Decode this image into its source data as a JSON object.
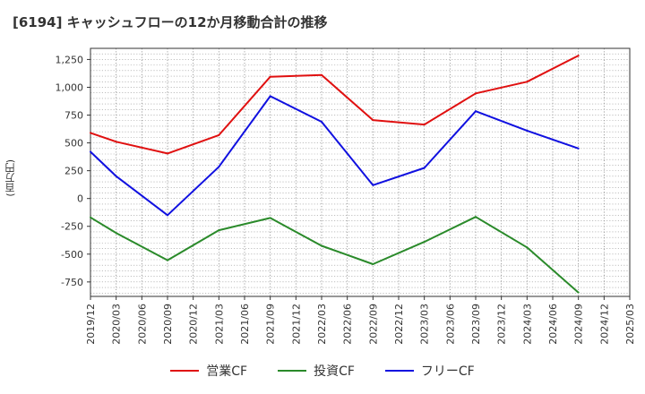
{
  "chart_data": {
    "type": "line",
    "title": "[6194]  キャッシュフローの12か月移動合計の推移",
    "ylabel": "(百万円)",
    "xlabel": "",
    "ylim": [
      -880,
      1350
    ],
    "yticks": [
      1250,
      1000,
      750,
      500,
      250,
      0,
      -250,
      -500,
      -750
    ],
    "ytick_labels": [
      "1,250",
      "1,000",
      "750",
      "500",
      "250",
      "0",
      "-250",
      "-500",
      "-750"
    ],
    "categories": [
      "2019/12",
      "2020/03",
      "2020/06",
      "2020/09",
      "2020/12",
      "2021/03",
      "2021/06",
      "2021/09",
      "2021/12",
      "2022/03",
      "2022/06",
      "2022/09",
      "2022/12",
      "2023/03",
      "2023/06",
      "2023/09",
      "2023/12",
      "2024/03",
      "2024/06",
      "2024/09",
      "2024/12",
      "2025/03"
    ],
    "series": [
      {
        "name": "営業CF",
        "color": "#e01010",
        "values": [
          590,
          510,
          null,
          405,
          null,
          570,
          null,
          1095,
          null,
          1110,
          null,
          705,
          null,
          665,
          null,
          945,
          null,
          1050,
          null,
          1285,
          null,
          null
        ]
      },
      {
        "name": "投資CF",
        "color": "#2a8a2a",
        "values": [
          -170,
          -310,
          null,
          -555,
          null,
          -285,
          null,
          -175,
          null,
          -425,
          null,
          -590,
          null,
          -390,
          null,
          -165,
          null,
          -440,
          null,
          -845,
          null,
          null
        ]
      },
      {
        "name": "フリーCF",
        "color": "#1010e0",
        "values": [
          420,
          200,
          null,
          -150,
          null,
          285,
          null,
          920,
          null,
          690,
          null,
          120,
          null,
          275,
          null,
          785,
          null,
          610,
          null,
          450,
          null,
          null
        ]
      }
    ],
    "grid": true,
    "legend": "bottom-center"
  }
}
